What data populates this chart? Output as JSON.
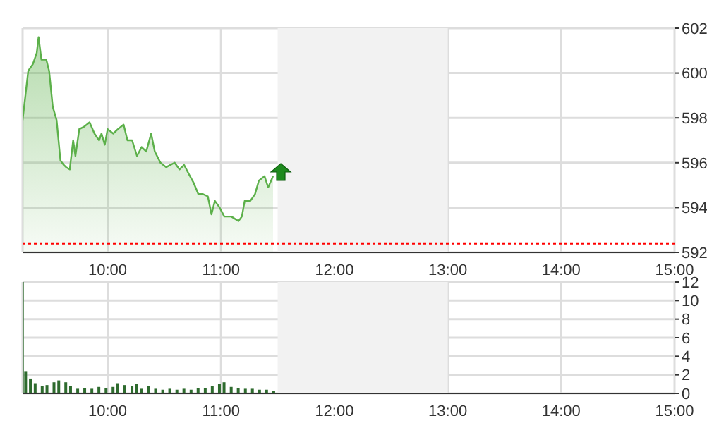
{
  "chart_data": [
    {
      "type": "area",
      "color": "#5cb04a",
      "x": [
        9.25,
        9.3,
        9.341,
        9.375,
        9.391,
        9.416,
        9.459,
        9.484,
        9.516,
        9.55,
        9.584,
        9.613,
        9.634,
        9.666,
        9.696,
        9.716,
        9.75,
        9.791,
        9.841,
        9.884,
        9.925,
        9.946,
        9.975,
        10.0,
        10.05,
        10.091,
        10.141,
        10.175,
        10.216,
        10.259,
        10.3,
        10.341,
        10.384,
        10.416,
        10.466,
        10.516,
        10.591,
        10.634,
        10.675,
        10.716,
        10.759,
        10.8,
        10.841,
        10.884,
        10.916,
        10.946,
        10.988,
        11.029,
        11.091,
        11.154,
        11.184,
        11.209,
        11.259,
        11.3,
        11.334,
        11.384,
        11.416,
        11.459
      ],
      "values": [
        597.9,
        600.1,
        600.4,
        600.9,
        601.6,
        600.6,
        600.6,
        600.1,
        598.5,
        597.9,
        596.1,
        595.9,
        595.8,
        595.7,
        597.0,
        596.3,
        597.5,
        597.6,
        597.8,
        597.3,
        597.0,
        597.3,
        596.8,
        597.5,
        597.3,
        597.5,
        597.7,
        597.0,
        597.0,
        596.3,
        596.7,
        596.5,
        597.3,
        596.5,
        596.0,
        595.8,
        596.0,
        595.7,
        595.9,
        595.5,
        595.1,
        594.6,
        594.6,
        594.5,
        593.7,
        594.3,
        594.0,
        593.6,
        593.6,
        593.4,
        593.6,
        594.3,
        594.3,
        594.6,
        595.2,
        595.4,
        594.9,
        595.4
      ],
      "xlim": [
        9.25,
        15
      ],
      "xticks": [
        {
          "value": 10,
          "label": "10:00"
        },
        {
          "value": 11,
          "label": "11:00"
        },
        {
          "value": 12,
          "label": "12:00"
        },
        {
          "value": 13,
          "label": "13:00"
        },
        {
          "value": 14,
          "label": "14:00"
        },
        {
          "value": 15,
          "label": "15:00"
        }
      ],
      "ylim": [
        592,
        602
      ],
      "yticks": [
        592,
        594,
        596,
        598,
        600,
        602
      ],
      "ref_lines": [
        {
          "axis": "y",
          "value": 592.4,
          "color": "#ff0000",
          "line_style": "dotted"
        }
      ],
      "bands": [
        {
          "axis": "x",
          "from": 11.5,
          "to": 13,
          "color": "#f2f2f2"
        }
      ],
      "grid": true
    },
    {
      "type": "bar",
      "color": "#2e6b2e",
      "x": [
        9.25,
        9.279,
        9.321,
        9.363,
        9.425,
        9.467,
        9.529,
        9.571,
        9.633,
        9.675,
        9.738,
        9.8,
        9.863,
        9.925,
        9.988,
        10.05,
        10.092,
        10.154,
        10.217,
        10.258,
        10.3,
        10.363,
        10.425,
        10.488,
        10.55,
        10.613,
        10.675,
        10.738,
        10.8,
        10.863,
        10.925,
        10.988,
        11.029,
        11.092,
        11.154,
        11.217,
        11.279,
        11.342,
        11.404,
        11.467
      ],
      "values": [
        12,
        2.4,
        1.6,
        1.1,
        0.8,
        0.9,
        1.2,
        1.4,
        1.2,
        0.8,
        0.5,
        0.6,
        0.5,
        0.7,
        0.6,
        0.7,
        1.1,
        0.9,
        0.8,
        1.0,
        0.5,
        0.8,
        0.5,
        0.4,
        0.5,
        0.4,
        0.5,
        0.4,
        0.6,
        0.6,
        0.8,
        1.0,
        1.2,
        0.7,
        0.6,
        0.5,
        0.5,
        0.4,
        0.4,
        0.3
      ],
      "xlim": [
        9.25,
        15
      ],
      "xticks": [
        {
          "value": 10,
          "label": "10:00"
        },
        {
          "value": 11,
          "label": "11:00"
        },
        {
          "value": 12,
          "label": "12:00"
        },
        {
          "value": 13,
          "label": "13:00"
        },
        {
          "value": 14,
          "label": "14:00"
        },
        {
          "value": 15,
          "label": "15:00"
        }
      ],
      "ylim": [
        0,
        12
      ],
      "yticks": [
        0,
        2,
        4,
        6,
        8,
        10,
        12
      ],
      "bands": [
        {
          "axis": "x",
          "from": 11.5,
          "to": 13,
          "color": "#f2f2f2"
        }
      ],
      "grid": true
    }
  ]
}
